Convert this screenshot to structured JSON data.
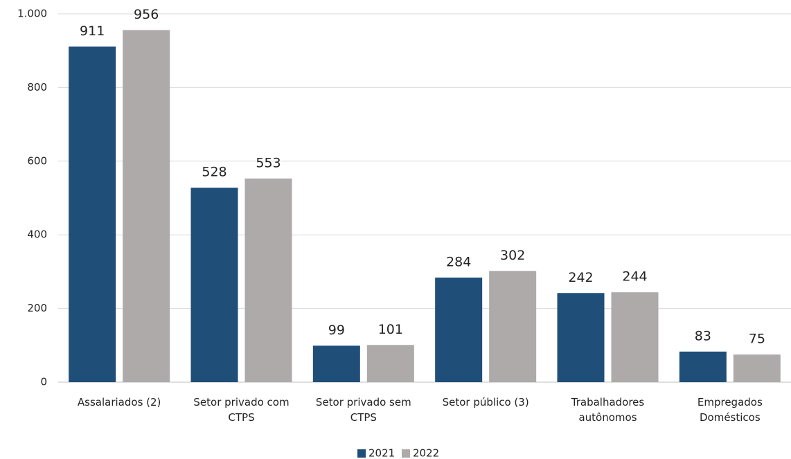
{
  "chart_data": {
    "type": "bar",
    "categories": [
      "Assalariados (2)",
      "Setor privado com CTPS",
      "Setor privado sem CTPS",
      "Setor público (3)",
      "Trabalhadores autônomos",
      "Empregados Domésticos"
    ],
    "series": [
      {
        "name": "2021",
        "color": "#1f4e79",
        "values": [
          911,
          528,
          99,
          284,
          242,
          83
        ]
      },
      {
        "name": "2022",
        "color": "#aeaaaa",
        "values": [
          956,
          553,
          101,
          302,
          244,
          75
        ]
      }
    ],
    "ylim": [
      0,
      1000
    ],
    "yticks": [
      0,
      200,
      400,
      600,
      800,
      {
        "value": 1000,
        "label": "1.000"
      }
    ],
    "grid": true,
    "legend": "bottom"
  }
}
